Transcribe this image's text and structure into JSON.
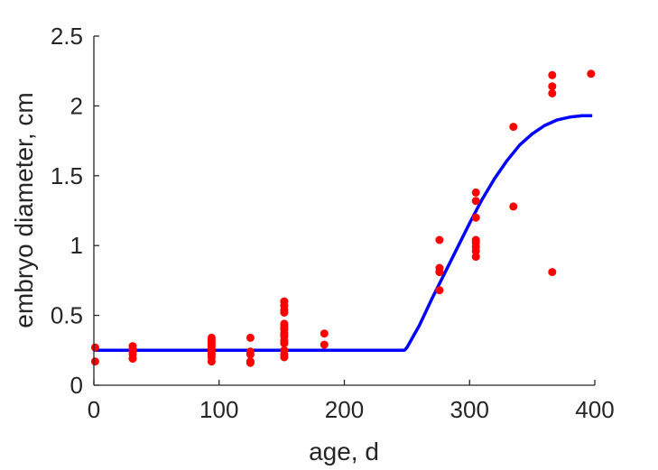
{
  "chart_data": {
    "type": "scatter",
    "xlabel": "age, d",
    "ylabel": "embryo diameter, cm",
    "xlim": [
      0,
      400
    ],
    "ylim": [
      0,
      2.5
    ],
    "xticks": [
      0,
      100,
      200,
      300,
      400
    ],
    "yticks": [
      0,
      0.5,
      1,
      1.5,
      2,
      2.5
    ],
    "xtick_labels": [
      "0",
      "100",
      "200",
      "300",
      "400"
    ],
    "ytick_labels": [
      "0",
      "0.5",
      "1",
      "1.5",
      "2",
      "2.5"
    ],
    "grid": false,
    "legend": "none",
    "series": [
      {
        "kind": "scatter",
        "color": "#ff0000",
        "points": [
          [
            1,
            0.27
          ],
          [
            1,
            0.17
          ],
          [
            31,
            0.28
          ],
          [
            31,
            0.26
          ],
          [
            31,
            0.24
          ],
          [
            31,
            0.22
          ],
          [
            31,
            0.19
          ],
          [
            94,
            0.34
          ],
          [
            94,
            0.32
          ],
          [
            94,
            0.3
          ],
          [
            94,
            0.28
          ],
          [
            94,
            0.26
          ],
          [
            94,
            0.24
          ],
          [
            94,
            0.22
          ],
          [
            94,
            0.2
          ],
          [
            94,
            0.17
          ],
          [
            125,
            0.34
          ],
          [
            125,
            0.24
          ],
          [
            125,
            0.22
          ],
          [
            125,
            0.17
          ],
          [
            125,
            0.16
          ],
          [
            152,
            0.6
          ],
          [
            152,
            0.57
          ],
          [
            152,
            0.54
          ],
          [
            152,
            0.52
          ],
          [
            152,
            0.44
          ],
          [
            152,
            0.42
          ],
          [
            152,
            0.4
          ],
          [
            152,
            0.37
          ],
          [
            152,
            0.35
          ],
          [
            152,
            0.32
          ],
          [
            152,
            0.3
          ],
          [
            152,
            0.25
          ],
          [
            152,
            0.22
          ],
          [
            152,
            0.2
          ],
          [
            184,
            0.37
          ],
          [
            184,
            0.29
          ],
          [
            276,
            1.04
          ],
          [
            276,
            0.84
          ],
          [
            276,
            0.81
          ],
          [
            276,
            0.68
          ],
          [
            305,
            1.38
          ],
          [
            305,
            1.32
          ],
          [
            305,
            1.2
          ],
          [
            305,
            1.04
          ],
          [
            305,
            1.02
          ],
          [
            305,
            0.99
          ],
          [
            305,
            0.96
          ],
          [
            305,
            0.92
          ],
          [
            335,
            1.85
          ],
          [
            335,
            1.28
          ],
          [
            366,
            2.22
          ],
          [
            366,
            2.14
          ],
          [
            366,
            2.09
          ],
          [
            366,
            0.81
          ],
          [
            397,
            2.23
          ]
        ]
      },
      {
        "kind": "line",
        "color": "#0000ff",
        "points": [
          [
            0,
            0.25
          ],
          [
            248,
            0.25
          ],
          [
            250,
            0.27
          ],
          [
            260,
            0.43
          ],
          [
            270,
            0.62
          ],
          [
            280,
            0.8
          ],
          [
            290,
            0.98
          ],
          [
            300,
            1.16
          ],
          [
            310,
            1.33
          ],
          [
            320,
            1.48
          ],
          [
            330,
            1.61
          ],
          [
            340,
            1.72
          ],
          [
            350,
            1.8
          ],
          [
            360,
            1.86
          ],
          [
            370,
            1.9
          ],
          [
            380,
            1.92
          ],
          [
            390,
            1.93
          ],
          [
            398,
            1.93
          ]
        ]
      }
    ]
  }
}
